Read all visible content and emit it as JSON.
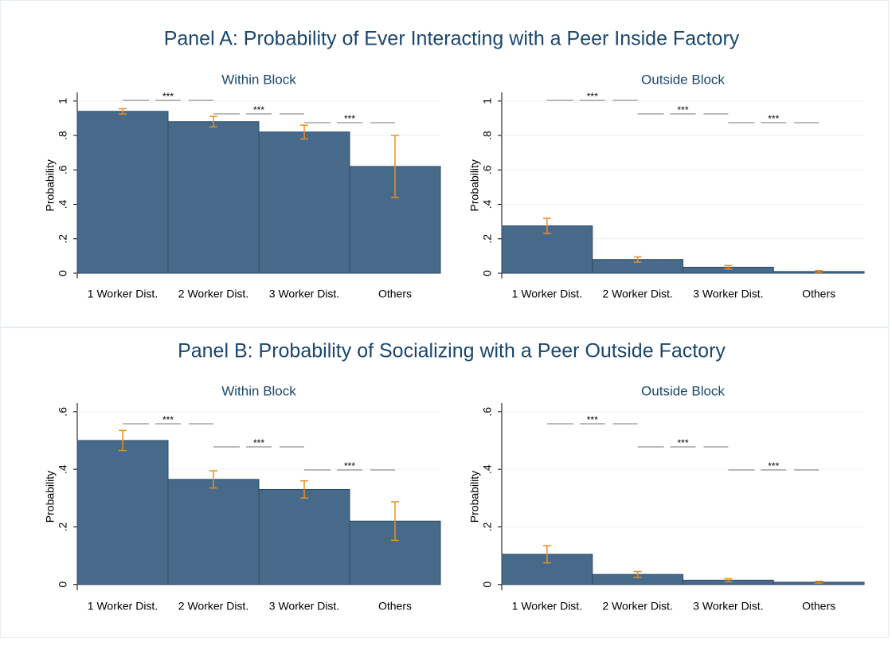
{
  "panels": [
    "Panel A: Probability of Ever Interacting with a Peer Inside Factory",
    "Panel B: Probability of Socializing with a Peer Outside Factory"
  ],
  "chart_data": [
    {
      "type": "bar",
      "title": "Within Block",
      "ylabel": "Probability",
      "categories": [
        "1 Worker Dist.",
        "2 Worker Dist.",
        "3 Worker Dist.",
        "Others"
      ],
      "values": [
        0.94,
        0.88,
        0.82,
        0.62
      ],
      "errors": [
        0.015,
        0.03,
        0.04,
        0.18
      ],
      "annotations": [
        "***",
        "***",
        "***"
      ],
      "color": "#476a8a",
      "error_color": "#e8901e",
      "grid": true,
      "ylim": [
        -0.03,
        1.05
      ],
      "yticks": [
        0,
        {
          "value": 0.2,
          "label": ".2"
        },
        {
          "value": 0.4,
          "label": ".4"
        },
        {
          "value": 0.6,
          "label": ".6"
        },
        {
          "value": 0.8,
          "label": ".8"
        },
        1
      ]
    },
    {
      "type": "bar",
      "title": "Outside Block",
      "ylabel": "Probability",
      "categories": [
        "1 Worker Dist.",
        "2 Worker Dist.",
        "3 Worker Dist.",
        "Others"
      ],
      "values": [
        0.275,
        0.08,
        0.035,
        0.01
      ],
      "errors": [
        0.045,
        0.015,
        0.01,
        0.005
      ],
      "annotations": [
        "***",
        "***",
        "***"
      ],
      "color": "#476a8a",
      "error_color": "#e8901e",
      "grid": true,
      "ylim": [
        -0.03,
        1.05
      ],
      "yticks": [
        0,
        {
          "value": 0.2,
          "label": ".2"
        },
        {
          "value": 0.4,
          "label": ".4"
        },
        {
          "value": 0.6,
          "label": ".6"
        },
        {
          "value": 0.8,
          "label": ".8"
        },
        1
      ]
    },
    {
      "type": "bar",
      "title": "Within Block",
      "ylabel": "Probability",
      "categories": [
        "1 Worker Dist.",
        "2 Worker Dist.",
        "3 Worker Dist.",
        "Others"
      ],
      "values": [
        0.5,
        0.365,
        0.33,
        0.22
      ],
      "errors": [
        0.035,
        0.03,
        0.03,
        0.067
      ],
      "annotations": [
        "***",
        "***",
        "***"
      ],
      "color": "#476a8a",
      "error_color": "#e8901e",
      "grid": true,
      "ylim": [
        -0.02,
        0.63
      ],
      "yticks": [
        0,
        {
          "value": 0.2,
          "label": ".2"
        },
        {
          "value": 0.4,
          "label": ".4"
        },
        {
          "value": 0.6,
          "label": ".6"
        }
      ]
    },
    {
      "type": "bar",
      "title": "Outside Block",
      "ylabel": "Probability",
      "categories": [
        "1 Worker Dist.",
        "2 Worker Dist.",
        "3 Worker Dist.",
        "Others"
      ],
      "values": [
        0.105,
        0.035,
        0.015,
        0.008
      ],
      "errors": [
        0.03,
        0.01,
        0.005,
        0.003
      ],
      "annotations": [
        "***",
        "***",
        "***"
      ],
      "color": "#476a8a",
      "error_color": "#e8901e",
      "grid": true,
      "ylim": [
        -0.02,
        0.63
      ],
      "yticks": [
        0,
        {
          "value": 0.2,
          "label": ".2"
        },
        {
          "value": 0.4,
          "label": ".4"
        },
        {
          "value": 0.6,
          "label": ".6"
        }
      ]
    }
  ]
}
